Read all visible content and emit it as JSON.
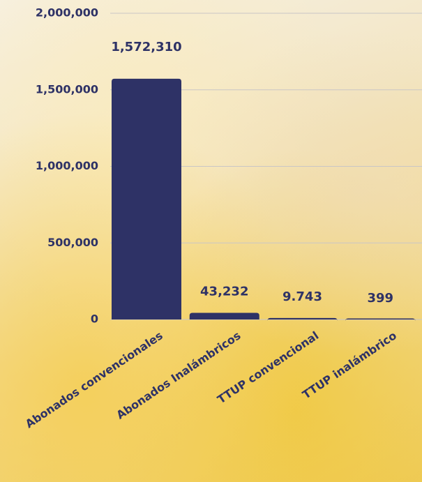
{
  "chart_data": {
    "type": "bar",
    "categories": [
      "Abonados convencionales",
      "Abonados Inalámbricos",
      "TTUP convencional",
      "TTUP inalámbrico"
    ],
    "values": [
      1572310,
      43232,
      9743,
      399
    ],
    "value_labels": [
      "1,572,310",
      "43,232",
      "9.743",
      "399"
    ],
    "color": "#2e3266",
    "ylim": [
      0,
      2000000
    ],
    "yticks": [
      0,
      {
        "value": 500000,
        "label": "500,000"
      },
      {
        "value": 1000000,
        "label": "1,000,000"
      },
      {
        "value": 1500000,
        "label": "1,500,000"
      },
      {
        "value": 2000000,
        "label": "2,000,000"
      }
    ],
    "grid": true
  }
}
